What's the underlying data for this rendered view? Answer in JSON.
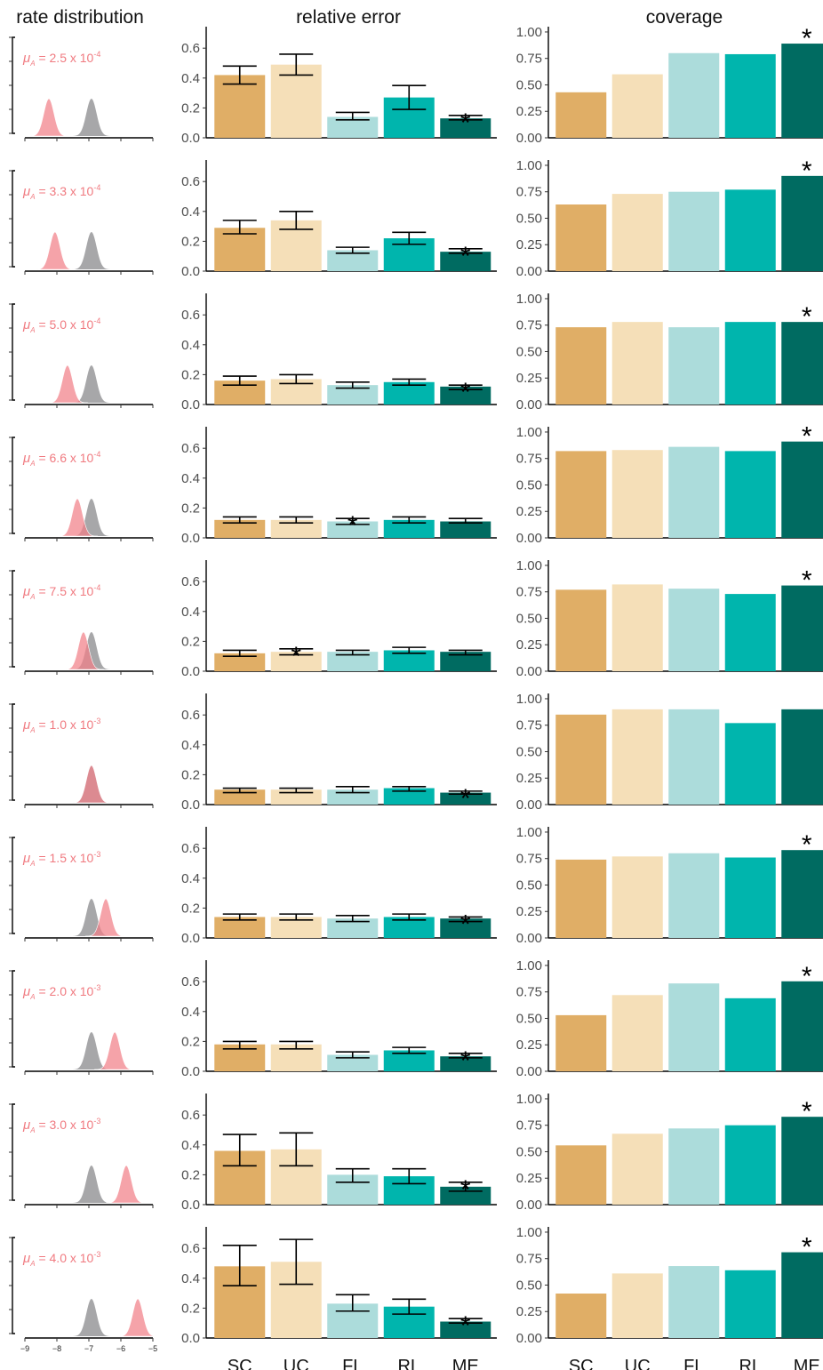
{
  "titles": [
    "rate distribution",
    "relative error",
    "coverage"
  ],
  "categories": [
    "SC",
    "UC",
    "FL",
    "RL",
    "ME"
  ],
  "colors": [
    "#e0ae66",
    "#f5dfb8",
    "#acdcdb",
    "#00b5ad",
    "#006b61"
  ],
  "star": "*",
  "rate_colors": {
    "reference": "#a7a7a9",
    "estimate": "#f17f88"
  },
  "rate_xlim": [
    -9,
    -5
  ],
  "rate_xticks": [
    {
      "value": -9,
      "label": "−9"
    },
    {
      "value": -8,
      "label": "−8"
    },
    {
      "value": -7,
      "label": "−7"
    },
    {
      "value": -6,
      "label": "−6"
    },
    {
      "value": -5,
      "label": "−5"
    }
  ],
  "reference_mean": -6.92,
  "rate_sd": 0.16,
  "error_ylim": [
    0,
    0.744
  ],
  "error_yticks": [
    {
      "value": 0,
      "label": "0.0"
    },
    0.2,
    0.4,
    0.6
  ],
  "coverage_ylim": [
    0,
    1.05
  ],
  "coverage_yticks": [
    {
      "value": 0,
      "label": "0.00"
    },
    0.25,
    {
      "value": 0.5,
      "label": "0.50"
    },
    0.75,
    {
      "value": 1,
      "label": "1.00"
    }
  ],
  "rows": [
    {
      "label": {
        "mu": "μ",
        "sub": "A",
        "text": " = 2.5 x 10",
        "exp": "-4"
      },
      "rate_mean": -8.25,
      "error": [
        0.42,
        0.49,
        0.14,
        0.27,
        0.13
      ],
      "error_low": [
        0.36,
        0.42,
        0.12,
        0.19,
        0.12
      ],
      "error_high": [
        0.48,
        0.56,
        0.17,
        0.35,
        0.15
      ],
      "error_star": 4,
      "coverage": [
        0.43,
        0.6,
        0.8,
        0.79,
        0.89
      ],
      "coverage_star": 4
    },
    {
      "label": {
        "mu": "μ",
        "sub": "A",
        "text": " = 3.3 x 10",
        "exp": "-4"
      },
      "rate_mean": -8.06,
      "error": [
        0.29,
        0.34,
        0.14,
        0.22,
        0.13
      ],
      "error_low": [
        0.25,
        0.28,
        0.12,
        0.18,
        0.12
      ],
      "error_high": [
        0.34,
        0.4,
        0.16,
        0.26,
        0.15
      ],
      "error_star": 4,
      "coverage": [
        0.63,
        0.73,
        0.75,
        0.77,
        0.9
      ],
      "coverage_star": 4
    },
    {
      "label": {
        "mu": "μ",
        "sub": "A",
        "text": " = 5.0 x 10",
        "exp": "-4"
      },
      "rate_mean": -7.67,
      "error": [
        0.16,
        0.17,
        0.13,
        0.15,
        0.12
      ],
      "error_low": [
        0.13,
        0.14,
        0.11,
        0.13,
        0.1
      ],
      "error_high": [
        0.19,
        0.2,
        0.15,
        0.17,
        0.13
      ],
      "error_star": 4,
      "coverage": [
        0.73,
        0.78,
        0.73,
        0.78,
        0.78
      ],
      "coverage_star": 4
    },
    {
      "label": {
        "mu": "μ",
        "sub": "A",
        "text": " = 6.6 x 10",
        "exp": "-4"
      },
      "rate_mean": -7.36,
      "error": [
        0.12,
        0.12,
        0.11,
        0.12,
        0.11
      ],
      "error_low": [
        0.1,
        0.1,
        0.09,
        0.1,
        0.1
      ],
      "error_high": [
        0.14,
        0.14,
        0.13,
        0.14,
        0.13
      ],
      "error_star": 2,
      "coverage": [
        0.82,
        0.83,
        0.86,
        0.82,
        0.91
      ],
      "coverage_star": 4
    },
    {
      "label": {
        "mu": "μ",
        "sub": "A",
        "text": " = 7.5 x 10",
        "exp": "-4"
      },
      "rate_mean": -7.17,
      "error": [
        0.12,
        0.13,
        0.13,
        0.14,
        0.13
      ],
      "error_low": [
        0.1,
        0.11,
        0.11,
        0.12,
        0.11
      ],
      "error_high": [
        0.14,
        0.15,
        0.14,
        0.16,
        0.14
      ],
      "error_star": 1,
      "coverage": [
        0.77,
        0.82,
        0.78,
        0.73,
        0.81
      ],
      "coverage_star": 4
    },
    {
      "label": {
        "mu": "μ",
        "sub": "A",
        "text": " = 1.0 x 10",
        "exp": "-3"
      },
      "rate_mean": -6.92,
      "error": [
        0.1,
        0.1,
        0.1,
        0.11,
        0.08
      ],
      "error_low": [
        0.08,
        0.08,
        0.08,
        0.09,
        0.07
      ],
      "error_high": [
        0.11,
        0.11,
        0.12,
        0.12,
        0.09
      ],
      "error_star": 4,
      "coverage": [
        0.85,
        0.9,
        0.9,
        0.77,
        0.9
      ]
    },
    {
      "label": {
        "mu": "μ",
        "sub": "A",
        "text": " = 1.5 x 10",
        "exp": "-3"
      },
      "rate_mean": -6.47,
      "error": [
        0.14,
        0.14,
        0.13,
        0.14,
        0.13
      ],
      "error_low": [
        0.12,
        0.12,
        0.11,
        0.12,
        0.11
      ],
      "error_high": [
        0.16,
        0.16,
        0.15,
        0.16,
        0.14
      ],
      "error_star": 4,
      "coverage": [
        0.74,
        0.77,
        0.8,
        0.76,
        0.83
      ],
      "coverage_star": 4
    },
    {
      "label": {
        "mu": "μ",
        "sub": "A",
        "text": " = 2.0 x 10",
        "exp": "-3"
      },
      "rate_mean": -6.19,
      "error": [
        0.18,
        0.18,
        0.11,
        0.14,
        0.1
      ],
      "error_low": [
        0.15,
        0.15,
        0.09,
        0.12,
        0.09
      ],
      "error_high": [
        0.2,
        0.2,
        0.13,
        0.16,
        0.12
      ],
      "error_star": 4,
      "coverage": [
        0.53,
        0.72,
        0.83,
        0.69,
        0.85
      ],
      "coverage_star": 4
    },
    {
      "label": {
        "mu": "μ",
        "sub": "A",
        "text": " = 3.0 x 10",
        "exp": "-3"
      },
      "rate_mean": -5.83,
      "error": [
        0.36,
        0.37,
        0.2,
        0.19,
        0.12
      ],
      "error_low": [
        0.26,
        0.26,
        0.15,
        0.14,
        0.09
      ],
      "error_high": [
        0.47,
        0.48,
        0.24,
        0.24,
        0.15
      ],
      "error_star": 4,
      "coverage": [
        0.56,
        0.67,
        0.72,
        0.75,
        0.83
      ],
      "coverage_star": 4
    },
    {
      "label": {
        "mu": "μ",
        "sub": "A",
        "text": " = 4.0 x 10",
        "exp": "-3"
      },
      "rate_mean": -5.47,
      "error": [
        0.48,
        0.51,
        0.23,
        0.21,
        0.11
      ],
      "error_low": [
        0.35,
        0.36,
        0.18,
        0.16,
        0.1
      ],
      "error_high": [
        0.62,
        0.66,
        0.29,
        0.26,
        0.13
      ],
      "error_star": 4,
      "coverage": [
        0.42,
        0.61,
        0.68,
        0.64,
        0.81
      ],
      "coverage_star": 4
    }
  ]
}
